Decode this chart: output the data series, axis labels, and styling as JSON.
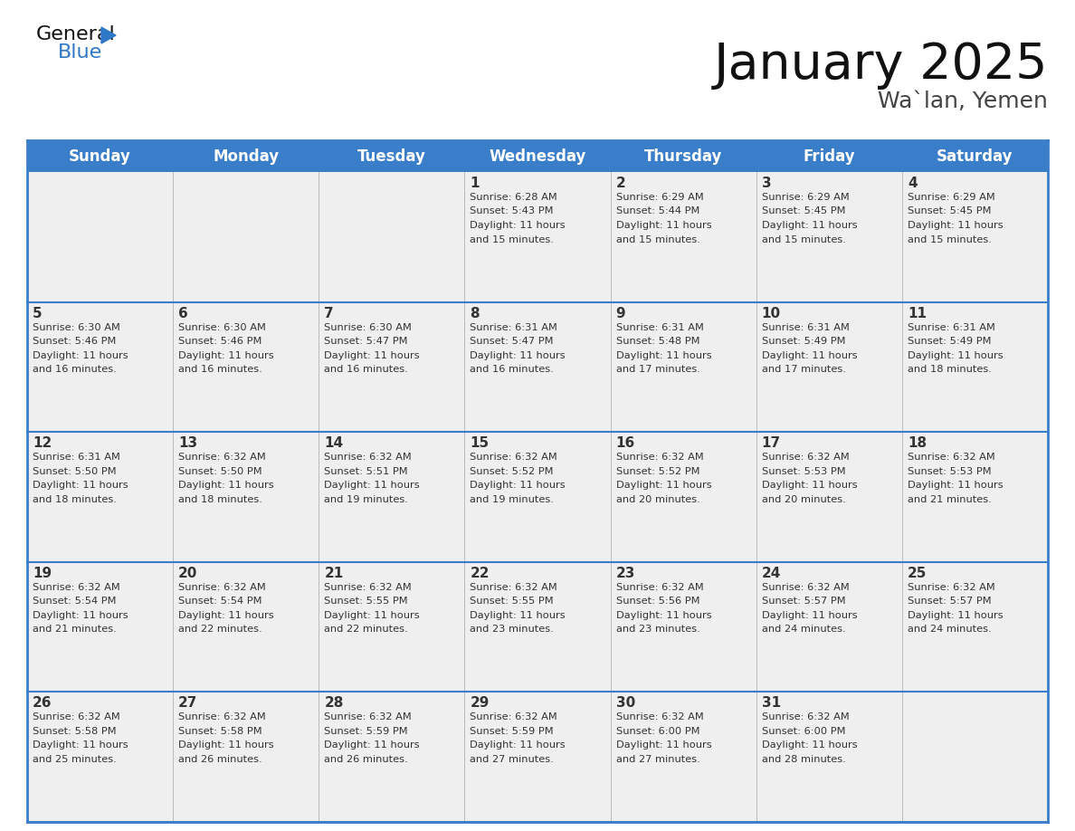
{
  "title": "January 2025",
  "subtitle": "Wa`lan, Yemen",
  "header_color": "#3A7DC9",
  "header_text_color": "#FFFFFF",
  "cell_bg_color": "#EFEFEF",
  "separator_color": "#3A7DC9",
  "text_color": "#333333",
  "day_headers": [
    "Sunday",
    "Monday",
    "Tuesday",
    "Wednesday",
    "Thursday",
    "Friday",
    "Saturday"
  ],
  "days": [
    {
      "day": 1,
      "col": 3,
      "row": 0,
      "sunrise": "6:28 AM",
      "sunset": "5:43 PM",
      "daylight_hours": 11,
      "daylight_minutes": 15
    },
    {
      "day": 2,
      "col": 4,
      "row": 0,
      "sunrise": "6:29 AM",
      "sunset": "5:44 PM",
      "daylight_hours": 11,
      "daylight_minutes": 15
    },
    {
      "day": 3,
      "col": 5,
      "row": 0,
      "sunrise": "6:29 AM",
      "sunset": "5:45 PM",
      "daylight_hours": 11,
      "daylight_minutes": 15
    },
    {
      "day": 4,
      "col": 6,
      "row": 0,
      "sunrise": "6:29 AM",
      "sunset": "5:45 PM",
      "daylight_hours": 11,
      "daylight_minutes": 15
    },
    {
      "day": 5,
      "col": 0,
      "row": 1,
      "sunrise": "6:30 AM",
      "sunset": "5:46 PM",
      "daylight_hours": 11,
      "daylight_minutes": 16
    },
    {
      "day": 6,
      "col": 1,
      "row": 1,
      "sunrise": "6:30 AM",
      "sunset": "5:46 PM",
      "daylight_hours": 11,
      "daylight_minutes": 16
    },
    {
      "day": 7,
      "col": 2,
      "row": 1,
      "sunrise": "6:30 AM",
      "sunset": "5:47 PM",
      "daylight_hours": 11,
      "daylight_minutes": 16
    },
    {
      "day": 8,
      "col": 3,
      "row": 1,
      "sunrise": "6:31 AM",
      "sunset": "5:47 PM",
      "daylight_hours": 11,
      "daylight_minutes": 16
    },
    {
      "day": 9,
      "col": 4,
      "row": 1,
      "sunrise": "6:31 AM",
      "sunset": "5:48 PM",
      "daylight_hours": 11,
      "daylight_minutes": 17
    },
    {
      "day": 10,
      "col": 5,
      "row": 1,
      "sunrise": "6:31 AM",
      "sunset": "5:49 PM",
      "daylight_hours": 11,
      "daylight_minutes": 17
    },
    {
      "day": 11,
      "col": 6,
      "row": 1,
      "sunrise": "6:31 AM",
      "sunset": "5:49 PM",
      "daylight_hours": 11,
      "daylight_minutes": 18
    },
    {
      "day": 12,
      "col": 0,
      "row": 2,
      "sunrise": "6:31 AM",
      "sunset": "5:50 PM",
      "daylight_hours": 11,
      "daylight_minutes": 18
    },
    {
      "day": 13,
      "col": 1,
      "row": 2,
      "sunrise": "6:32 AM",
      "sunset": "5:50 PM",
      "daylight_hours": 11,
      "daylight_minutes": 18
    },
    {
      "day": 14,
      "col": 2,
      "row": 2,
      "sunrise": "6:32 AM",
      "sunset": "5:51 PM",
      "daylight_hours": 11,
      "daylight_minutes": 19
    },
    {
      "day": 15,
      "col": 3,
      "row": 2,
      "sunrise": "6:32 AM",
      "sunset": "5:52 PM",
      "daylight_hours": 11,
      "daylight_minutes": 19
    },
    {
      "day": 16,
      "col": 4,
      "row": 2,
      "sunrise": "6:32 AM",
      "sunset": "5:52 PM",
      "daylight_hours": 11,
      "daylight_minutes": 20
    },
    {
      "day": 17,
      "col": 5,
      "row": 2,
      "sunrise": "6:32 AM",
      "sunset": "5:53 PM",
      "daylight_hours": 11,
      "daylight_minutes": 20
    },
    {
      "day": 18,
      "col": 6,
      "row": 2,
      "sunrise": "6:32 AM",
      "sunset": "5:53 PM",
      "daylight_hours": 11,
      "daylight_minutes": 21
    },
    {
      "day": 19,
      "col": 0,
      "row": 3,
      "sunrise": "6:32 AM",
      "sunset": "5:54 PM",
      "daylight_hours": 11,
      "daylight_minutes": 21
    },
    {
      "day": 20,
      "col": 1,
      "row": 3,
      "sunrise": "6:32 AM",
      "sunset": "5:54 PM",
      "daylight_hours": 11,
      "daylight_minutes": 22
    },
    {
      "day": 21,
      "col": 2,
      "row": 3,
      "sunrise": "6:32 AM",
      "sunset": "5:55 PM",
      "daylight_hours": 11,
      "daylight_minutes": 22
    },
    {
      "day": 22,
      "col": 3,
      "row": 3,
      "sunrise": "6:32 AM",
      "sunset": "5:55 PM",
      "daylight_hours": 11,
      "daylight_minutes": 23
    },
    {
      "day": 23,
      "col": 4,
      "row": 3,
      "sunrise": "6:32 AM",
      "sunset": "5:56 PM",
      "daylight_hours": 11,
      "daylight_minutes": 23
    },
    {
      "day": 24,
      "col": 5,
      "row": 3,
      "sunrise": "6:32 AM",
      "sunset": "5:57 PM",
      "daylight_hours": 11,
      "daylight_minutes": 24
    },
    {
      "day": 25,
      "col": 6,
      "row": 3,
      "sunrise": "6:32 AM",
      "sunset": "5:57 PM",
      "daylight_hours": 11,
      "daylight_minutes": 24
    },
    {
      "day": 26,
      "col": 0,
      "row": 4,
      "sunrise": "6:32 AM",
      "sunset": "5:58 PM",
      "daylight_hours": 11,
      "daylight_minutes": 25
    },
    {
      "day": 27,
      "col": 1,
      "row": 4,
      "sunrise": "6:32 AM",
      "sunset": "5:58 PM",
      "daylight_hours": 11,
      "daylight_minutes": 26
    },
    {
      "day": 28,
      "col": 2,
      "row": 4,
      "sunrise": "6:32 AM",
      "sunset": "5:59 PM",
      "daylight_hours": 11,
      "daylight_minutes": 26
    },
    {
      "day": 29,
      "col": 3,
      "row": 4,
      "sunrise": "6:32 AM",
      "sunset": "5:59 PM",
      "daylight_hours": 11,
      "daylight_minutes": 27
    },
    {
      "day": 30,
      "col": 4,
      "row": 4,
      "sunrise": "6:32 AM",
      "sunset": "6:00 PM",
      "daylight_hours": 11,
      "daylight_minutes": 27
    },
    {
      "day": 31,
      "col": 5,
      "row": 4,
      "sunrise": "6:32 AM",
      "sunset": "6:00 PM",
      "daylight_hours": 11,
      "daylight_minutes": 28
    }
  ]
}
